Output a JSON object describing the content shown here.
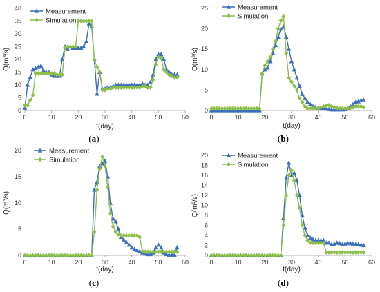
{
  "legend": {
    "measurement": "Measurement",
    "simulation": "Simulation"
  },
  "colors": {
    "measurement": "#3b6fba",
    "simulation": "#8cbe4a"
  },
  "chart_data": [
    {
      "type": "line",
      "caption": "(a)",
      "xlabel": "t(day)",
      "ylabel": "Q(m³/s)",
      "xlim": [
        0,
        60
      ],
      "ylim": [
        0,
        40
      ],
      "xticks": [
        0,
        10,
        20,
        30,
        40,
        50,
        60
      ],
      "yticks": [
        0,
        5,
        10,
        15,
        20,
        25,
        30,
        35,
        40
      ],
      "series": [
        {
          "name": "Measurement",
          "marker": "triangle",
          "x": [
            0,
            1,
            2,
            3,
            4,
            5,
            6,
            7,
            8,
            9,
            10,
            11,
            12,
            13,
            14,
            15,
            16,
            17,
            18,
            19,
            20,
            21,
            22,
            23,
            24,
            25,
            26,
            27,
            28,
            29,
            30,
            31,
            32,
            33,
            34,
            35,
            36,
            37,
            38,
            39,
            40,
            41,
            42,
            43,
            44,
            45,
            46,
            47,
            48,
            49,
            50,
            51,
            52,
            53,
            54,
            55,
            56,
            57
          ],
          "y": [
            1,
            10,
            13,
            16,
            16.5,
            17,
            17.5,
            15.5,
            15,
            15,
            14,
            13.5,
            13.5,
            13.5,
            20,
            25,
            24,
            25,
            24.5,
            24.5,
            24.5,
            24.5,
            25,
            27,
            34,
            33,
            20,
            6.5,
            15,
            8.5,
            8.5,
            9,
            9,
            9.5,
            10,
            10,
            10,
            10,
            10,
            10,
            10,
            10,
            10,
            10,
            10.5,
            10,
            10,
            11,
            14,
            20,
            22,
            22,
            20,
            16,
            15,
            14,
            14,
            14
          ]
        },
        {
          "name": "Simulation",
          "marker": "diamond",
          "x": [
            0,
            1,
            2,
            3,
            4,
            5,
            6,
            7,
            8,
            9,
            10,
            11,
            12,
            13,
            14,
            15,
            16,
            17,
            18,
            19,
            20,
            21,
            22,
            23,
            24,
            25,
            26,
            27,
            28,
            29,
            30,
            31,
            32,
            33,
            34,
            35,
            36,
            37,
            38,
            39,
            40,
            41,
            42,
            43,
            44,
            45,
            46,
            47,
            48,
            49,
            50,
            51,
            52,
            53,
            54,
            55,
            56,
            57
          ],
          "y": [
            2,
            2,
            4,
            6,
            14.5,
            14.5,
            14.5,
            14.5,
            14.5,
            14.5,
            14.5,
            14.5,
            14,
            14,
            14,
            24.5,
            25,
            25,
            25,
            25,
            35,
            35,
            35,
            35,
            35,
            35,
            20,
            17,
            15,
            8,
            8,
            8.5,
            8.5,
            9,
            9,
            9,
            9,
            9,
            9,
            9,
            9,
            9,
            9,
            9,
            9.5,
            9.5,
            9,
            9,
            12,
            18,
            21,
            20.5,
            16,
            15,
            14,
            13.5,
            13,
            13
          ]
        }
      ]
    },
    {
      "type": "line",
      "caption": "(b)",
      "xlabel": "t(day)",
      "ylabel": "Q(m³/s)",
      "xlim": [
        0,
        60
      ],
      "ylim": [
        0,
        25
      ],
      "xticks": [
        0,
        10,
        20,
        30,
        40,
        50,
        60
      ],
      "yticks": [
        0,
        5,
        10,
        15,
        20,
        25
      ],
      "series": [
        {
          "name": "Measurement",
          "marker": "triangle",
          "x": [
            0,
            1,
            2,
            3,
            4,
            5,
            6,
            7,
            8,
            9,
            10,
            11,
            12,
            13,
            14,
            15,
            16,
            17,
            18,
            19,
            20,
            21,
            22,
            23,
            24,
            25,
            26,
            27,
            28,
            29,
            30,
            31,
            32,
            33,
            34,
            35,
            36,
            37,
            38,
            39,
            40,
            41,
            42,
            43,
            44,
            45,
            46,
            47,
            48,
            49,
            50,
            51,
            52,
            53,
            54,
            55,
            56,
            57
          ],
          "y": [
            0,
            0,
            0,
            0,
            0,
            0,
            0,
            0,
            0,
            0,
            0,
            0,
            0,
            0,
            0,
            0,
            0,
            0,
            0,
            9,
            10,
            10.5,
            12,
            14,
            16,
            18,
            20,
            20.5,
            18,
            15,
            12,
            10,
            8,
            6,
            4,
            3,
            2,
            1.5,
            1,
            0.8,
            0.6,
            0.5,
            0.5,
            0.4,
            0.3,
            0.2,
            0.2,
            0.2,
            0.2,
            0.2,
            0.3,
            0.6,
            1,
            1.5,
            2,
            2.2,
            2.5,
            2.5
          ]
        },
        {
          "name": "Simulation",
          "marker": "diamond",
          "x": [
            0,
            1,
            2,
            3,
            4,
            5,
            6,
            7,
            8,
            9,
            10,
            11,
            12,
            13,
            14,
            15,
            16,
            17,
            18,
            19,
            20,
            21,
            22,
            23,
            24,
            25,
            26,
            27,
            28,
            29,
            30,
            31,
            32,
            33,
            34,
            35,
            36,
            37,
            38,
            39,
            40,
            41,
            42,
            43,
            44,
            45,
            46,
            47,
            48,
            49,
            50,
            51,
            52,
            53,
            54,
            55,
            56,
            57
          ],
          "y": [
            0.5,
            0.5,
            0.5,
            0.5,
            0.5,
            0.5,
            0.5,
            0.5,
            0.5,
            0.5,
            0.5,
            0.5,
            0.5,
            0.5,
            0.5,
            0.5,
            0.5,
            0.5,
            0.5,
            9,
            11,
            12,
            13,
            15,
            17,
            20,
            22,
            23,
            14,
            8,
            7,
            6,
            5,
            3,
            2,
            1,
            0.5,
            0.5,
            0.5,
            0.5,
            0.5,
            0.8,
            1,
            1.2,
            1.3,
            1,
            0.8,
            0.6,
            0.5,
            0.5,
            0.5,
            0.5,
            0.6,
            0.8,
            1,
            1,
            1,
            0.8
          ]
        }
      ]
    },
    {
      "type": "line",
      "caption": "(c)",
      "xlabel": "t(day)",
      "ylabel": "Q(m³/s)",
      "xlim": [
        0,
        60
      ],
      "ylim": [
        0,
        20
      ],
      "xticks": [
        0,
        10,
        20,
        30,
        40,
        50,
        60
      ],
      "yticks": [
        0,
        5,
        10,
        15,
        20
      ],
      "series": [
        {
          "name": "Measurement",
          "marker": "triangle",
          "x": [
            0,
            1,
            2,
            3,
            4,
            5,
            6,
            7,
            8,
            9,
            10,
            11,
            12,
            13,
            14,
            15,
            16,
            17,
            18,
            19,
            20,
            21,
            22,
            23,
            24,
            25,
            26,
            27,
            28,
            29,
            30,
            31,
            32,
            33,
            34,
            35,
            36,
            37,
            38,
            39,
            40,
            41,
            42,
            43,
            44,
            45,
            46,
            47,
            48,
            49,
            50,
            51,
            52,
            53,
            54,
            55,
            56,
            57
          ],
          "y": [
            0,
            0,
            0,
            0,
            0,
            0,
            0,
            0,
            0,
            0,
            0,
            0,
            0,
            0,
            0,
            0,
            0,
            0,
            0,
            0,
            0,
            0,
            0,
            0,
            0,
            0,
            12.5,
            14,
            17,
            17.5,
            18,
            15,
            10,
            7,
            6.5,
            5,
            3.5,
            3,
            2.5,
            2,
            1.5,
            1.2,
            1,
            0.8,
            0.5,
            0.3,
            0.2,
            0.2,
            0.5,
            1.5,
            2,
            1.5,
            0.5,
            0.2,
            0.1,
            0.1,
            0.1,
            1.5
          ]
        },
        {
          "name": "Simulation",
          "marker": "diamond",
          "x": [
            0,
            1,
            2,
            3,
            4,
            5,
            6,
            7,
            8,
            9,
            10,
            11,
            12,
            13,
            14,
            15,
            16,
            17,
            18,
            19,
            20,
            21,
            22,
            23,
            24,
            25,
            26,
            27,
            28,
            29,
            30,
            31,
            32,
            33,
            34,
            35,
            36,
            37,
            38,
            39,
            40,
            41,
            42,
            43,
            44,
            45,
            46,
            47,
            48,
            49,
            50,
            51,
            52,
            53,
            54,
            55,
            56,
            57
          ],
          "y": [
            0,
            0,
            0,
            0,
            0,
            0,
            0,
            0,
            0,
            0,
            0,
            0,
            0,
            0,
            0,
            0,
            0,
            0,
            0,
            0,
            0,
            0,
            0,
            0,
            0,
            0,
            4.5,
            12.5,
            16.5,
            18.8,
            17,
            13,
            8,
            5.5,
            4.5,
            4,
            3.8,
            3.8,
            3.8,
            3.8,
            3.8,
            3.8,
            3.8,
            3.5,
            0.8,
            0.7,
            0.7,
            0.7,
            0.7,
            0.7,
            0.7,
            0.7,
            0.7,
            0.7,
            0.7,
            0.7,
            0.7,
            0.7
          ]
        }
      ]
    },
    {
      "type": "line",
      "caption": "(d)",
      "xlabel": "t(day)",
      "ylabel": "Q(m³/s)",
      "xlim": [
        0,
        60
      ],
      "ylim": [
        0,
        20
      ],
      "xticks": [
        0,
        10,
        20,
        30,
        40,
        50,
        60
      ],
      "yticks": [
        0,
        2,
        4,
        6,
        8,
        10,
        12,
        14,
        16,
        18,
        20
      ],
      "series": [
        {
          "name": "Measurement",
          "marker": "triangle",
          "x": [
            0,
            1,
            2,
            3,
            4,
            5,
            6,
            7,
            8,
            9,
            10,
            11,
            12,
            13,
            14,
            15,
            16,
            17,
            18,
            19,
            20,
            21,
            22,
            23,
            24,
            25,
            26,
            27,
            28,
            29,
            30,
            31,
            32,
            33,
            34,
            35,
            36,
            37,
            38,
            39,
            40,
            41,
            42,
            43,
            44,
            45,
            46,
            47,
            48,
            49,
            50,
            51,
            52,
            53,
            54,
            55,
            56,
            57
          ],
          "y": [
            0,
            0,
            0,
            0,
            0,
            0,
            0,
            0,
            0,
            0,
            0,
            0,
            0,
            0,
            0,
            0,
            0,
            0,
            0,
            0,
            0,
            0,
            0,
            0,
            0,
            0,
            0,
            7.5,
            15.5,
            18.5,
            16,
            16.5,
            15,
            12,
            8,
            5.5,
            4,
            3.5,
            3.2,
            3,
            3,
            3,
            3,
            2.5,
            2.5,
            2.2,
            2.3,
            2.5,
            2.4,
            2.2,
            2.3,
            2.5,
            2.4,
            2.3,
            2.2,
            2.2,
            2.1,
            2
          ]
        },
        {
          "name": "Simulation",
          "marker": "diamond",
          "x": [
            0,
            1,
            2,
            3,
            4,
            5,
            6,
            7,
            8,
            9,
            10,
            11,
            12,
            13,
            14,
            15,
            16,
            17,
            18,
            19,
            20,
            21,
            22,
            23,
            24,
            25,
            26,
            27,
            28,
            29,
            30,
            31,
            32,
            33,
            34,
            35,
            36,
            37,
            38,
            39,
            40,
            41,
            42,
            43,
            44,
            45,
            46,
            47,
            48,
            49,
            50,
            51,
            52,
            53,
            54,
            55,
            56,
            57
          ],
          "y": [
            0,
            0,
            0,
            0,
            0,
            0,
            0,
            0,
            0,
            0,
            0,
            0,
            0,
            0,
            0,
            0,
            0,
            0,
            0,
            0,
            0,
            0,
            0,
            0,
            0,
            0,
            0,
            6,
            12,
            16,
            17,
            15,
            12,
            9.5,
            6,
            4,
            3,
            2.5,
            2.5,
            2.5,
            2.5,
            2.5,
            2.5,
            0.6,
            0.6,
            0.6,
            0.6,
            0.6,
            0.6,
            0.6,
            0.6,
            0.6,
            0.6,
            0.6,
            0.6,
            0.6,
            0.6,
            0.6
          ]
        }
      ]
    }
  ]
}
